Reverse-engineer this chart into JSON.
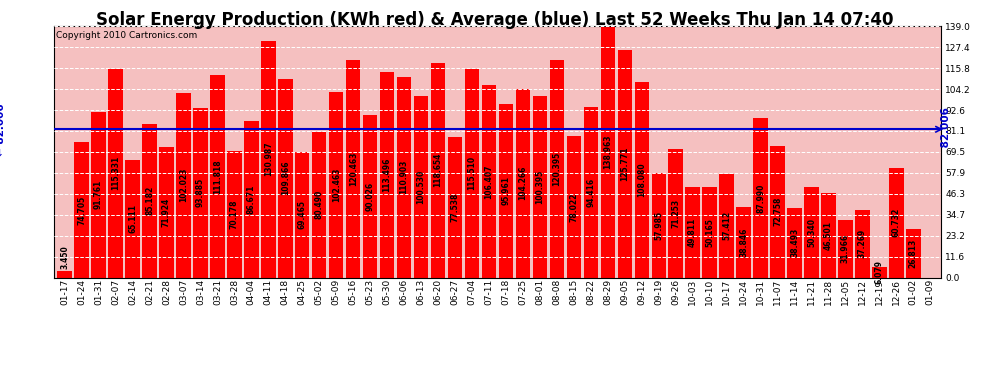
{
  "title": "Solar Energy Production (KWh red) & Average (blue) Last 52 Weeks Thu Jan 14 07:40",
  "copyright": "Copyright 2010 Cartronics.com",
  "average": 82.006,
  "bar_color": "#ff0000",
  "average_color": "#0000cc",
  "background_color": "#ffffff",
  "plot_bg_color": "#f5c0c0",
  "ylim": [
    0,
    139.0
  ],
  "yticks_right": [
    0.0,
    11.6,
    23.2,
    34.7,
    46.3,
    57.9,
    69.5,
    81.1,
    92.6,
    104.2,
    115.8,
    127.4,
    139.0
  ],
  "categories": [
    "01-17",
    "01-24",
    "01-31",
    "02-07",
    "02-14",
    "02-21",
    "02-28",
    "03-07",
    "03-14",
    "03-21",
    "03-28",
    "04-04",
    "04-11",
    "04-18",
    "04-25",
    "05-02",
    "05-09",
    "05-16",
    "05-23",
    "05-30",
    "06-06",
    "06-13",
    "06-20",
    "06-27",
    "07-04",
    "07-11",
    "07-18",
    "07-25",
    "08-01",
    "08-08",
    "08-15",
    "08-22",
    "08-29",
    "09-05",
    "09-12",
    "09-19",
    "09-26",
    "10-03",
    "10-10",
    "10-17",
    "10-24",
    "10-31",
    "11-07",
    "11-14",
    "11-21",
    "11-28",
    "12-05",
    "12-12",
    "12-19",
    "12-26",
    "01-02",
    "01-09"
  ],
  "values": [
    3.45,
    74.705,
    91.761,
    115.331,
    65.111,
    85.182,
    71.924,
    102.023,
    93.885,
    111.818,
    70.178,
    86.671,
    130.987,
    109.866,
    69.465,
    80.49,
    102.463,
    120.463,
    90.026,
    113.496,
    110.903,
    100.53,
    118.654,
    77.538,
    115.51,
    106.407,
    95.961,
    104.266,
    100.395,
    120.395,
    78.022,
    94.416,
    138.963,
    125.771,
    108.08,
    57.985,
    71.253,
    49.811,
    50.165,
    57.412,
    38.846,
    87.99,
    72.758,
    38.493,
    50.34,
    46.501,
    31.966,
    37.269,
    6.079,
    60.732,
    26.813,
    0.0
  ],
  "val_labels": [
    "3.450",
    "74.705",
    "91.761",
    "115.331",
    "65.111",
    "85.182",
    "71.924",
    "102.023",
    "93.885",
    "111.818",
    "70.178",
    "86.671",
    "130.987",
    "109.866",
    "69.465",
    "80.490",
    "102.463",
    "120.463",
    "90.026",
    "113.496",
    "110.903",
    "100.530",
    "118.654",
    "77.538",
    "115.510",
    "106.407",
    "95.961",
    "104.266",
    "100.395",
    "120.395",
    "78.022",
    "94.416",
    "138.963",
    "125.771",
    "108.080",
    "57.985",
    "71.253",
    "49.811",
    "50.165",
    "57.412",
    "38.846",
    "87.990",
    "72.758",
    "38.493",
    "50.340",
    "46.501",
    "31.966",
    "37.269",
    "6.079",
    "60.732",
    "26.813",
    ""
  ],
  "title_fontsize": 12,
  "copyright_fontsize": 6.5,
  "tick_fontsize": 6.5,
  "bar_label_fontsize": 5.5,
  "avg_label_fontsize": 7.5
}
